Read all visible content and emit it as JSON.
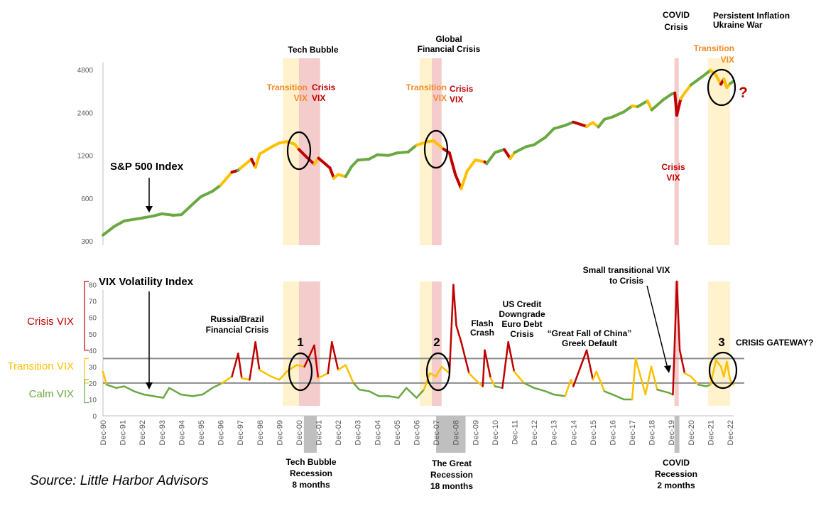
{
  "colors": {
    "calm": "#6AA842",
    "transition": "#FFC000",
    "crisis": "#C00000",
    "transition_band": "#FFF2CC",
    "crisis_band": "#F4CCCC",
    "recession": "#BFBFBF",
    "threshold": "#8C8C8C",
    "orange_text": "#F28A24"
  },
  "chart_data": [
    {
      "type": "line",
      "title": "",
      "label": "S&P 500 Index",
      "scale": "log",
      "yticks": [
        "300",
        "600",
        "1200",
        "2400",
        "4800"
      ],
      "ylim": [
        280,
        5400
      ],
      "xlim": [
        1990.92,
        2023.1
      ],
      "points": [
        [
          1990.92,
          330,
          "calm"
        ],
        [
          1991.5,
          380,
          "calm"
        ],
        [
          1992.0,
          415,
          "calm"
        ],
        [
          1992.92,
          435,
          "calm"
        ],
        [
          1993.5,
          450,
          "calm"
        ],
        [
          1993.92,
          466,
          "calm"
        ],
        [
          1994.5,
          455,
          "calm"
        ],
        [
          1994.92,
          459,
          "calm"
        ],
        [
          1995.5,
          545,
          "calm"
        ],
        [
          1995.92,
          615,
          "calm"
        ],
        [
          1996.5,
          670,
          "calm"
        ],
        [
          1996.92,
          740,
          "calm"
        ],
        [
          1997.5,
          915,
          "transition"
        ],
        [
          1997.8,
          940,
          "crisis"
        ],
        [
          1997.92,
          970,
          "calm"
        ],
        [
          1998.5,
          1130,
          "transition"
        ],
        [
          1998.7,
          990,
          "crisis"
        ],
        [
          1998.92,
          1229,
          "transition"
        ],
        [
          1999.5,
          1370,
          "transition"
        ],
        [
          1999.92,
          1469,
          "transition"
        ],
        [
          2000.3,
          1500,
          "transition"
        ],
        [
          2000.7,
          1440,
          "transition"
        ],
        [
          2000.92,
          1320,
          "transition"
        ],
        [
          2001.3,
          1170,
          "crisis"
        ],
        [
          2001.7,
          1040,
          "crisis"
        ],
        [
          2001.92,
          1148,
          "transition"
        ],
        [
          2002.5,
          980,
          "crisis"
        ],
        [
          2002.7,
          830,
          "crisis"
        ],
        [
          2002.92,
          880,
          "transition"
        ],
        [
          2003.3,
          850,
          "transition"
        ],
        [
          2003.6,
          1000,
          "calm"
        ],
        [
          2003.92,
          1112,
          "calm"
        ],
        [
          2004.5,
          1130,
          "calm"
        ],
        [
          2004.92,
          1212,
          "calm"
        ],
        [
          2005.5,
          1200,
          "calm"
        ],
        [
          2005.92,
          1248,
          "calm"
        ],
        [
          2006.5,
          1270,
          "calm"
        ],
        [
          2006.92,
          1418,
          "calm"
        ],
        [
          2007.5,
          1500,
          "transition"
        ],
        [
          2007.8,
          1520,
          "transition"
        ],
        [
          2007.92,
          1468,
          "transition"
        ],
        [
          2008.3,
          1330,
          "transition"
        ],
        [
          2008.6,
          1250,
          "crisis"
        ],
        [
          2008.9,
          880,
          "crisis"
        ],
        [
          2009.2,
          700,
          "crisis"
        ],
        [
          2009.5,
          930,
          "transition"
        ],
        [
          2009.92,
          1115,
          "transition"
        ],
        [
          2010.4,
          1080,
          "transition"
        ],
        [
          2010.5,
          1050,
          "crisis"
        ],
        [
          2010.92,
          1257,
          "calm"
        ],
        [
          2011.4,
          1320,
          "calm"
        ],
        [
          2011.7,
          1140,
          "crisis"
        ],
        [
          2011.92,
          1257,
          "transition"
        ],
        [
          2012.5,
          1380,
          "calm"
        ],
        [
          2012.92,
          1426,
          "calm"
        ],
        [
          2013.5,
          1610,
          "calm"
        ],
        [
          2013.92,
          1848,
          "calm"
        ],
        [
          2014.5,
          1950,
          "calm"
        ],
        [
          2014.92,
          2058,
          "calm"
        ],
        [
          2015.6,
          1920,
          "crisis"
        ],
        [
          2015.92,
          2043,
          "transition"
        ],
        [
          2016.2,
          1900,
          "transition"
        ],
        [
          2016.5,
          2150,
          "calm"
        ],
        [
          2016.92,
          2238,
          "calm"
        ],
        [
          2017.5,
          2430,
          "calm"
        ],
        [
          2017.92,
          2673,
          "calm"
        ],
        [
          2018.2,
          2640,
          "transition"
        ],
        [
          2018.7,
          2900,
          "calm"
        ],
        [
          2018.92,
          2506,
          "transition"
        ],
        [
          2019.5,
          2950,
          "calm"
        ],
        [
          2019.92,
          3230,
          "calm"
        ],
        [
          2020.1,
          3300,
          "calm"
        ],
        [
          2020.2,
          2300,
          "crisis"
        ],
        [
          2020.4,
          3000,
          "crisis"
        ],
        [
          2020.6,
          3300,
          "transition"
        ],
        [
          2020.92,
          3756,
          "transition"
        ],
        [
          2021.5,
          4300,
          "calm"
        ],
        [
          2021.92,
          4766,
          "calm"
        ],
        [
          2022.2,
          4400,
          "transition"
        ],
        [
          2022.45,
          3800,
          "transition"
        ],
        [
          2022.6,
          4130,
          "crisis"
        ],
        [
          2022.75,
          3600,
          "transition"
        ],
        [
          2022.92,
          3840,
          "transition"
        ],
        [
          2023.1,
          4000,
          "calm"
        ]
      ]
    },
    {
      "type": "line",
      "title": "",
      "label": "VIX Volatility Index",
      "yticks": [
        0,
        10,
        20,
        30,
        40,
        50,
        60,
        70,
        80
      ],
      "ylim": [
        0,
        82
      ],
      "xlim": [
        1990.92,
        2023.1
      ],
      "thresholds": [
        20,
        35
      ],
      "zones": [
        {
          "label": "Crisis VIX",
          "range": [
            40,
            82
          ],
          "color": "#C00000"
        },
        {
          "label": "Transition VIX",
          "range": [
            20,
            35
          ],
          "color": "#FFC000"
        },
        {
          "label": "Calm VIX",
          "range": [
            8,
            22
          ],
          "color": "#6AA842"
        }
      ],
      "points": [
        [
          1990.92,
          27
        ],
        [
          1991.1,
          19
        ],
        [
          1991.6,
          17
        ],
        [
          1992.0,
          18
        ],
        [
          1992.5,
          15
        ],
        [
          1993.0,
          13
        ],
        [
          1993.5,
          12
        ],
        [
          1994.0,
          11
        ],
        [
          1994.3,
          17
        ],
        [
          1994.9,
          13
        ],
        [
          1995.5,
          12
        ],
        [
          1996.0,
          13
        ],
        [
          1996.5,
          17
        ],
        [
          1997.0,
          20
        ],
        [
          1997.5,
          24
        ],
        [
          1997.82,
          38
        ],
        [
          1998.0,
          23
        ],
        [
          1998.4,
          22
        ],
        [
          1998.7,
          45
        ],
        [
          1998.9,
          28
        ],
        [
          1999.5,
          24
        ],
        [
          1999.92,
          22
        ],
        [
          2000.3,
          27
        ],
        [
          2000.8,
          31
        ],
        [
          2001.2,
          30
        ],
        [
          2001.7,
          43
        ],
        [
          2001.9,
          23
        ],
        [
          2002.4,
          26
        ],
        [
          2002.6,
          45
        ],
        [
          2002.92,
          28
        ],
        [
          2003.3,
          31
        ],
        [
          2003.7,
          20
        ],
        [
          2004.0,
          16
        ],
        [
          2004.5,
          15
        ],
        [
          2005.0,
          12
        ],
        [
          2005.5,
          12
        ],
        [
          2006.0,
          11
        ],
        [
          2006.4,
          17
        ],
        [
          2006.92,
          11
        ],
        [
          2007.3,
          16
        ],
        [
          2007.6,
          26
        ],
        [
          2007.9,
          24
        ],
        [
          2008.2,
          30
        ],
        [
          2008.6,
          26
        ],
        [
          2008.8,
          80
        ],
        [
          2008.95,
          55
        ],
        [
          2009.2,
          45
        ],
        [
          2009.6,
          26
        ],
        [
          2009.92,
          22
        ],
        [
          2010.3,
          18
        ],
        [
          2010.4,
          40
        ],
        [
          2010.7,
          23
        ],
        [
          2010.92,
          18
        ],
        [
          2011.3,
          17
        ],
        [
          2011.6,
          45
        ],
        [
          2011.9,
          27
        ],
        [
          2012.4,
          20
        ],
        [
          2012.92,
          17
        ],
        [
          2013.5,
          15
        ],
        [
          2013.92,
          13
        ],
        [
          2014.5,
          12
        ],
        [
          2014.8,
          22
        ],
        [
          2014.92,
          18
        ],
        [
          2015.6,
          40
        ],
        [
          2015.92,
          22
        ],
        [
          2016.1,
          27
        ],
        [
          2016.5,
          15
        ],
        [
          2016.92,
          13
        ],
        [
          2017.5,
          10
        ],
        [
          2017.92,
          10
        ],
        [
          2018.1,
          35
        ],
        [
          2018.6,
          13
        ],
        [
          2018.9,
          30
        ],
        [
          2019.2,
          16
        ],
        [
          2019.8,
          14
        ],
        [
          2020.0,
          13
        ],
        [
          2020.2,
          82
        ],
        [
          2020.35,
          40
        ],
        [
          2020.6,
          26
        ],
        [
          2020.92,
          24
        ],
        [
          2021.3,
          19
        ],
        [
          2021.7,
          18
        ],
        [
          2021.92,
          19
        ],
        [
          2022.2,
          34
        ],
        [
          2022.45,
          30
        ],
        [
          2022.6,
          24
        ],
        [
          2022.75,
          33
        ],
        [
          2022.92,
          22
        ],
        [
          2023.1,
          19
        ]
      ]
    }
  ],
  "bands": {
    "transition": [
      [
        2000.1,
        2000.92
      ],
      [
        2007.08,
        2007.7
      ],
      [
        2021.8,
        2022.92
      ]
    ],
    "crisis": [
      [
        2000.92,
        2002.0
      ],
      [
        2007.7,
        2008.2
      ],
      [
        2020.08,
        2020.3
      ]
    ],
    "recession": [
      [
        2001.17,
        2001.83
      ],
      [
        2007.92,
        2009.42
      ],
      [
        2020.08,
        2020.33
      ]
    ]
  },
  "x_labels": [
    "Dec-90",
    "Dec-91",
    "Dec-92",
    "Dec-93",
    "Dec-94",
    "Dec-95",
    "Dec-96",
    "Dec-97",
    "Dec-98",
    "Dec-99",
    "Dec-00",
    "Dec-01",
    "Dec-02",
    "Dec-03",
    "Dec-04",
    "Dec-05",
    "Dec-06",
    "Dec-07",
    "Dec-08",
    "Dec-09",
    "Dec-10",
    "Dec-11",
    "Dec-12",
    "Dec-13",
    "Dec-14",
    "Dec-15",
    "Dec-16",
    "Dec-17",
    "Dec-18",
    "Dec-19",
    "Dec-20",
    "Dec-21",
    "Dec-22"
  ],
  "annotations": {
    "tech_bubble": "Tech Bubble",
    "gfc_line1": "Global",
    "gfc_line2": "Financial Crisis",
    "covid_line1": "COVID",
    "covid_line2": "Crisis",
    "infl_line1": "Persistent Inflation",
    "infl_line2": "Ukraine War",
    "transition_word": "Transition",
    "vix_word": "VIX",
    "crisis_word": "Crisis",
    "question": "?",
    "sp500_label": "S&P 500 Index",
    "vix_label": "VIX Volatility Index",
    "russia_line1": "Russia/Brazil",
    "russia_line2": "Financial Crisis",
    "flash_line1": "Flash",
    "flash_line2": "Crash",
    "uscredit_line1": "US Credit",
    "uscredit_line2": "Downgrade",
    "uscredit_line3": "Euro Debt",
    "uscredit_line4": "Crisis",
    "china_line1": "“Great Fall of China”",
    "china_line2": "Greek Default",
    "small_line1": "Small transitional VIX",
    "small_line2": "to Crisis",
    "gateway": "CRISIS GATEWAY?",
    "num1": "1",
    "num2": "2",
    "num3": "3",
    "rec1_line1": "Tech Bubble",
    "rec1_line2": "Recession",
    "rec1_line3": "8 months",
    "rec2_line1": "The Great",
    "rec2_line2": "Recession",
    "rec2_line3": "18 months",
    "rec3_line1": "COVID",
    "rec3_line2": "Recession",
    "rec3_line3": "2 months",
    "source": "Source: Little Harbor Advisors"
  }
}
